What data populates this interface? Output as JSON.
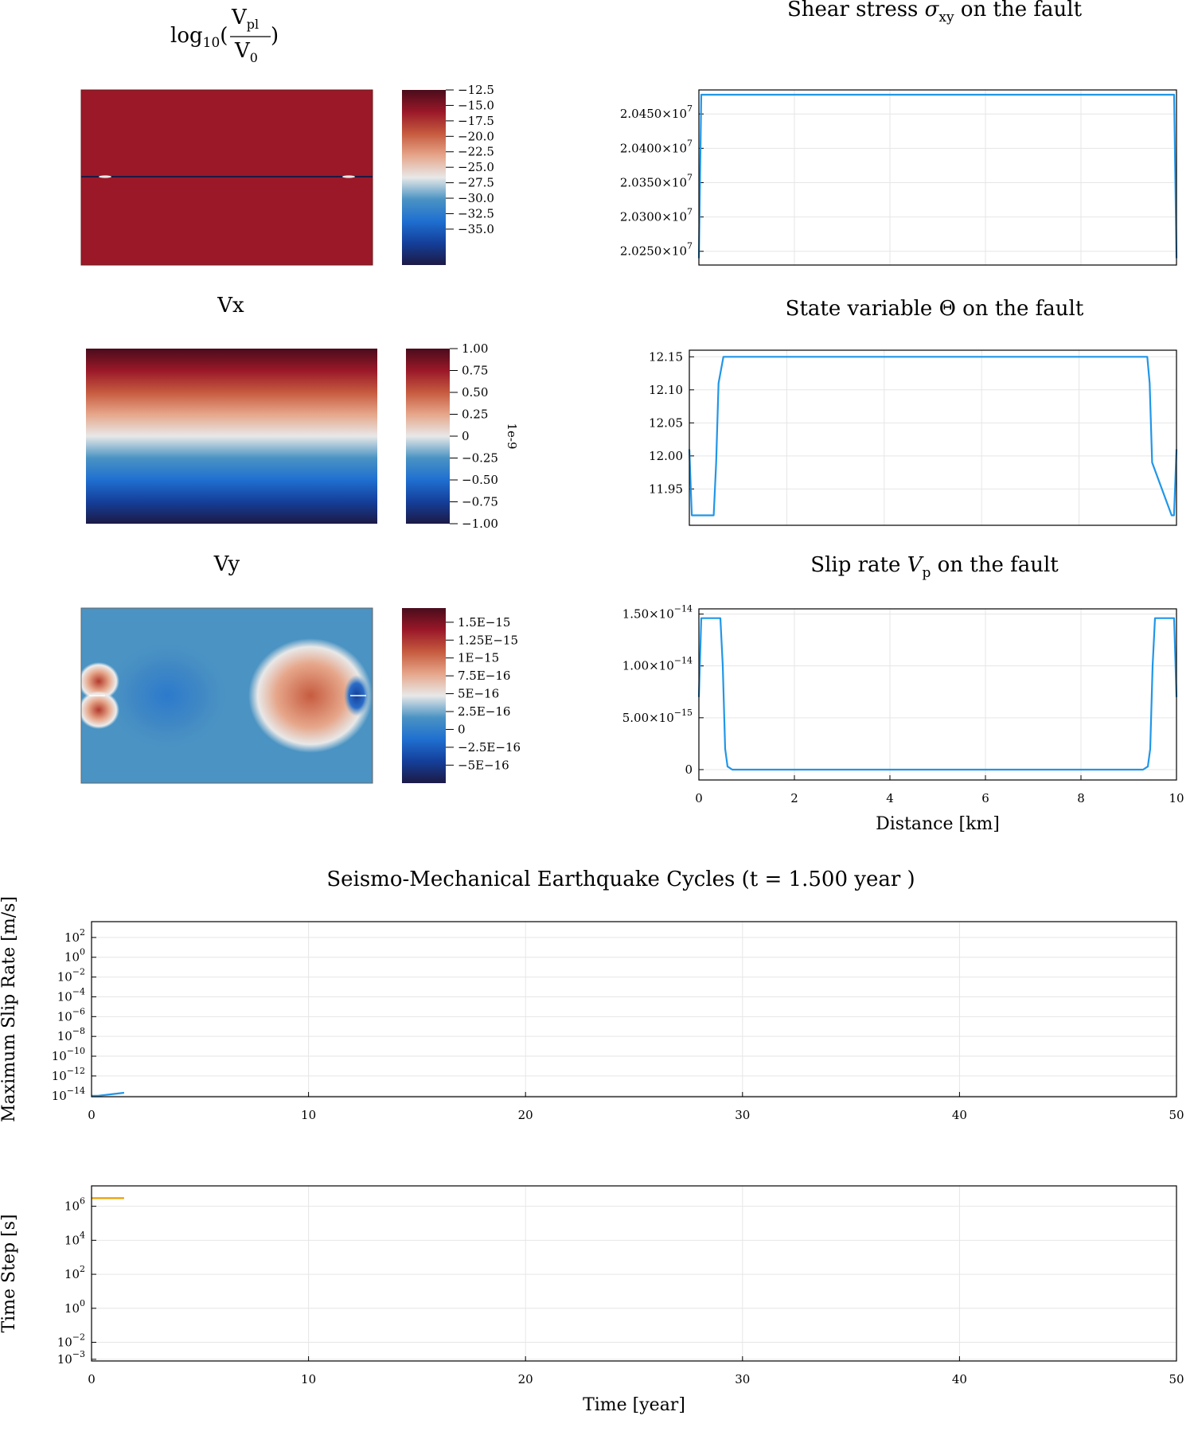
{
  "chart_data": [
    {
      "type": "heatmap",
      "title_parts": {
        "prefix": "log",
        "sub10": "10",
        "num": "V",
        "num_sub": "pl",
        "den": "V",
        "den_sub": "0"
      },
      "colormap": [
        "#1c1a45",
        "#143f9a",
        "#1f6fd0",
        "#4a93c3",
        "#e8e8e8",
        "#e6a68a",
        "#c65b3f",
        "#9a1828",
        "#4a0c1c"
      ],
      "fill_color": "#9a1828",
      "colorbar_ticks": [
        "−12.5",
        "−15.0",
        "−17.5",
        "−20.0",
        "−22.5",
        "−25.0",
        "−27.5",
        "−30.0",
        "−32.5",
        "−35.0"
      ],
      "colorbar_range": [
        -37,
        -12.5
      ]
    },
    {
      "type": "line",
      "title_parts": {
        "pre": "Shear stress ",
        "sym": "σ",
        "sub": "xy",
        "post": " on the fault"
      },
      "series_color": "#2196e8",
      "yticks": [
        {
          "mant": "2.0450×10",
          "exp": "7",
          "value": 20450000
        },
        {
          "mant": "2.0400×10",
          "exp": "7",
          "value": 20400000
        },
        {
          "mant": "2.0350×10",
          "exp": "7",
          "value": 20350000
        },
        {
          "mant": "2.0300×10",
          "exp": "7",
          "value": 20300000
        },
        {
          "mant": "2.0250×10",
          "exp": "7",
          "value": 20250000
        }
      ],
      "ylim": [
        20230000,
        20485000
      ],
      "xlim": [
        0,
        10
      ],
      "x": [
        0,
        0.05,
        0.1,
        9.9,
        9.95,
        10
      ],
      "y": [
        20240000,
        20478000,
        20478000,
        20478000,
        20478000,
        20240000
      ]
    },
    {
      "type": "heatmap",
      "title": "Vx",
      "colormap": [
        "#1c1a45",
        "#143f9a",
        "#1f6fd0",
        "#4a93c3",
        "#e8e8e8",
        "#e6a68a",
        "#c65b3f",
        "#9a1828",
        "#4a0c1c"
      ],
      "colorbar_ticks": [
        "1.00",
        "0.75",
        "0.50",
        "0.25",
        "0",
        "−0.25",
        "−0.50",
        "−0.75",
        "−1.00"
      ],
      "colorbar_range": [
        -1,
        1
      ],
      "colorbar_label": "1e-9"
    },
    {
      "type": "line",
      "title_parts": {
        "pre": "State variable Θ on the fault"
      },
      "series_color": "#2196e8",
      "yticks": [
        {
          "mant": "12.15",
          "value": 12.15
        },
        {
          "mant": "12.10",
          "value": 12.1
        },
        {
          "mant": "12.05",
          "value": 12.05
        },
        {
          "mant": "12.00",
          "value": 12.0
        },
        {
          "mant": "11.95",
          "value": 11.95
        }
      ],
      "ylim": [
        11.895,
        12.16
      ],
      "xlim": [
        0,
        10
      ],
      "x": [
        0,
        0.05,
        0.1,
        0.5,
        0.55,
        0.6,
        0.7,
        9.3,
        9.4,
        9.45,
        9.5,
        9.9,
        9.95,
        10
      ],
      "y": [
        12.01,
        11.91,
        11.91,
        11.91,
        11.99,
        12.11,
        12.15,
        12.15,
        12.15,
        12.11,
        11.99,
        11.91,
        11.91,
        12.01
      ]
    },
    {
      "type": "heatmap",
      "title": "Vy",
      "colormap": [
        "#1c1a45",
        "#143f9a",
        "#1f6fd0",
        "#4a93c3",
        "#e8e8e8",
        "#e6a68a",
        "#c65b3f",
        "#9a1828",
        "#4a0c1c"
      ],
      "colorbar_ticks": [
        "1.5E−15",
        "1.25E−15",
        "1E−15",
        "7.5E−16",
        "5E−16",
        "2.5E−16",
        "0",
        "−2.5E−16",
        "−5E−16"
      ],
      "colorbar_range": [
        -6e-16,
        1.7e-15
      ]
    },
    {
      "type": "line",
      "title_parts": {
        "pre": "Slip rate ",
        "sym": "V",
        "sub": "p",
        "post": " on the fault"
      },
      "series_color": "#2196e8",
      "yticks": [
        {
          "mant": "1.50×10",
          "exp": "−14",
          "value": 1.5e-14
        },
        {
          "mant": "1.00×10",
          "exp": "−14",
          "value": 1e-14
        },
        {
          "mant": "5.00×10",
          "exp": "−15",
          "value": 5e-15
        },
        {
          "mant": "0",
          "value": 0
        }
      ],
      "ylim": [
        -1e-15,
        1.55e-14
      ],
      "xlim": [
        0,
        10
      ],
      "xticks": [
        "0",
        "2",
        "4",
        "6",
        "8",
        "10"
      ],
      "xlabel": "Distance [km]",
      "x": [
        0,
        0.05,
        0.1,
        0.45,
        0.5,
        0.55,
        0.6,
        0.7,
        9.3,
        9.4,
        9.45,
        9.5,
        9.55,
        9.9,
        9.95,
        10
      ],
      "y": [
        7e-15,
        1.46e-14,
        1.46e-14,
        1.46e-14,
        1e-14,
        2e-15,
        3e-16,
        0,
        0,
        3e-16,
        2e-15,
        1e-14,
        1.46e-14,
        1.46e-14,
        1.46e-14,
        7e-15
      ]
    },
    {
      "type": "line",
      "title": "Seismo-Mechanical Earthquake Cycles (t = 1.500 year )",
      "ylabel": "Maximum Slip Rate [m/s]",
      "yscale": "log",
      "series_color": "#2196e8",
      "yticks": [
        {
          "mant": "10",
          "exp": "2",
          "value": 2
        },
        {
          "mant": "10",
          "exp": "0",
          "value": 0
        },
        {
          "mant": "10",
          "exp": "−2",
          "value": -2
        },
        {
          "mant": "10",
          "exp": "−4",
          "value": -4
        },
        {
          "mant": "10",
          "exp": "−6",
          "value": -6
        },
        {
          "mant": "10",
          "exp": "−8",
          "value": -8
        },
        {
          "mant": "10",
          "exp": "−10",
          "value": -10
        },
        {
          "mant": "10",
          "exp": "−12",
          "value": -12
        },
        {
          "mant": "10",
          "exp": "−14",
          "value": -14
        }
      ],
      "ylim_log10": [
        -14.1,
        3.6
      ],
      "xlim": [
        0,
        50
      ],
      "xticks": [
        "0",
        "10",
        "20",
        "30",
        "40",
        "50"
      ],
      "x": [
        0,
        0.3,
        1.5
      ],
      "y": [
        1e-14,
        1e-14,
        2e-14
      ]
    },
    {
      "type": "line",
      "ylabel": "Time Step [s]",
      "xlabel": "Time [year]",
      "yscale": "log",
      "series_color": "#e8a000",
      "yticks": [
        {
          "mant": "10",
          "exp": "6",
          "value": 6
        },
        {
          "mant": "10",
          "exp": "4",
          "value": 4
        },
        {
          "mant": "10",
          "exp": "2",
          "value": 2
        },
        {
          "mant": "10",
          "exp": "0",
          "value": 0
        },
        {
          "mant": "10",
          "exp": "−2",
          "value": -2
        },
        {
          "mant": "10",
          "exp": "−3",
          "value": -3
        }
      ],
      "ylim_log10": [
        -3.1,
        7.2
      ],
      "xlim": [
        0,
        50
      ],
      "xticks": [
        "0",
        "10",
        "20",
        "30",
        "40",
        "50"
      ],
      "x": [
        0,
        1.5
      ],
      "y": [
        3000000,
        3000000
      ]
    }
  ]
}
